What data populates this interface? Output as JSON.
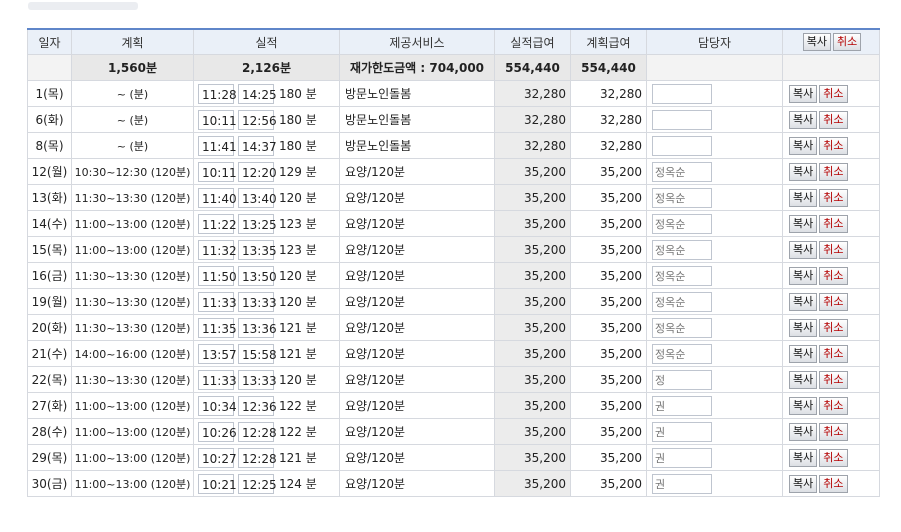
{
  "headers": {
    "day": "일자",
    "plan": "계획",
    "actual": "실적",
    "service": "제공서비스",
    "actual_pay": "실적급여",
    "plan_pay": "계획급여",
    "staff": "담당자",
    "copy": "복사",
    "cancel": "취소"
  },
  "summary": {
    "plan_total": "1,560분",
    "actual_total": "2,126분",
    "limit_label": "재가한도금액 : 704,000",
    "actual_pay_total": "554,440",
    "plan_pay_total": "554,440"
  },
  "rows": [
    {
      "day": "1(목)",
      "plan": "~ (분)",
      "start": "11:28",
      "end": "14:25",
      "mins": "180 분",
      "service": "방문노인돌봄",
      "actual_pay": "32,280",
      "plan_pay": "32,280",
      "staff": "",
      "copy": "복사",
      "cancel": "취소"
    },
    {
      "day": "6(화)",
      "plan": "~ (분)",
      "start": "10:11",
      "end": "12:56",
      "mins": "180 분",
      "service": "방문노인돌봄",
      "actual_pay": "32,280",
      "plan_pay": "32,280",
      "staff": "",
      "copy": "복사",
      "cancel": "취소"
    },
    {
      "day": "8(목)",
      "plan": "~ (분)",
      "start": "11:41",
      "end": "14:37",
      "mins": "180 분",
      "service": "방문노인돌봄",
      "actual_pay": "32,280",
      "plan_pay": "32,280",
      "staff": "",
      "copy": "복사",
      "cancel": "취소"
    },
    {
      "day": "12(월)",
      "plan": "10:30~12:30 (120분)",
      "start": "10:11",
      "end": "12:20",
      "mins": "129 분",
      "service": "요양/120분",
      "actual_pay": "35,200",
      "plan_pay": "35,200",
      "staff": "정옥순",
      "copy": "복사",
      "cancel": "취소"
    },
    {
      "day": "13(화)",
      "plan": "11:30~13:30 (120분)",
      "start": "11:40",
      "end": "13:40",
      "mins": "120 분",
      "service": "요양/120분",
      "actual_pay": "35,200",
      "plan_pay": "35,200",
      "staff": "정옥순",
      "copy": "복사",
      "cancel": "취소"
    },
    {
      "day": "14(수)",
      "plan": "11:00~13:00 (120분)",
      "start": "11:22",
      "end": "13:25",
      "mins": "123 분",
      "service": "요양/120분",
      "actual_pay": "35,200",
      "plan_pay": "35,200",
      "staff": "정옥순",
      "copy": "복사",
      "cancel": "취소"
    },
    {
      "day": "15(목)",
      "plan": "11:00~13:00 (120분)",
      "start": "11:32",
      "end": "13:35",
      "mins": "123 분",
      "service": "요양/120분",
      "actual_pay": "35,200",
      "plan_pay": "35,200",
      "staff": "정옥순",
      "copy": "복사",
      "cancel": "취소"
    },
    {
      "day": "16(금)",
      "plan": "11:30~13:30 (120분)",
      "start": "11:50",
      "end": "13:50",
      "mins": "120 분",
      "service": "요양/120분",
      "actual_pay": "35,200",
      "plan_pay": "35,200",
      "staff": "정옥순",
      "copy": "복사",
      "cancel": "취소"
    },
    {
      "day": "19(월)",
      "plan": "11:30~13:30 (120분)",
      "start": "11:33",
      "end": "13:33",
      "mins": "120 분",
      "service": "요양/120분",
      "actual_pay": "35,200",
      "plan_pay": "35,200",
      "staff": "정옥순",
      "copy": "복사",
      "cancel": "취소"
    },
    {
      "day": "20(화)",
      "plan": "11:30~13:30 (120분)",
      "start": "11:35",
      "end": "13:36",
      "mins": "121 분",
      "service": "요양/120분",
      "actual_pay": "35,200",
      "plan_pay": "35,200",
      "staff": "정옥순",
      "copy": "복사",
      "cancel": "취소"
    },
    {
      "day": "21(수)",
      "plan": "14:00~16:00 (120분)",
      "start": "13:57",
      "end": "15:58",
      "mins": "121 분",
      "service": "요양/120분",
      "actual_pay": "35,200",
      "plan_pay": "35,200",
      "staff": "정옥순",
      "copy": "복사",
      "cancel": "취소"
    },
    {
      "day": "22(목)",
      "plan": "11:30~13:30 (120분)",
      "start": "11:33",
      "end": "13:33",
      "mins": "120 분",
      "service": "요양/120분",
      "actual_pay": "35,200",
      "plan_pay": "35,200",
      "staff": "정",
      "copy": "복사",
      "cancel": "취소"
    },
    {
      "day": "27(화)",
      "plan": "11:00~13:00 (120분)",
      "start": "10:34",
      "end": "12:36",
      "mins": "122 분",
      "service": "요양/120분",
      "actual_pay": "35,200",
      "plan_pay": "35,200",
      "staff": "권",
      "copy": "복사",
      "cancel": "취소"
    },
    {
      "day": "28(수)",
      "plan": "11:00~13:00 (120분)",
      "start": "10:26",
      "end": "12:28",
      "mins": "122 분",
      "service": "요양/120분",
      "actual_pay": "35,200",
      "plan_pay": "35,200",
      "staff": "권",
      "copy": "복사",
      "cancel": "취소"
    },
    {
      "day": "29(목)",
      "plan": "11:00~13:00 (120분)",
      "start": "10:27",
      "end": "12:28",
      "mins": "121 분",
      "service": "요양/120분",
      "actual_pay": "35,200",
      "plan_pay": "35,200",
      "staff": "권",
      "copy": "복사",
      "cancel": "취소"
    },
    {
      "day": "30(금)",
      "plan": "11:00~13:00 (120분)",
      "start": "10:21",
      "end": "12:25",
      "mins": "124 분",
      "service": "요양/120분",
      "actual_pay": "35,200",
      "plan_pay": "35,200",
      "staff": "권",
      "copy": "복사",
      "cancel": "취소"
    }
  ]
}
